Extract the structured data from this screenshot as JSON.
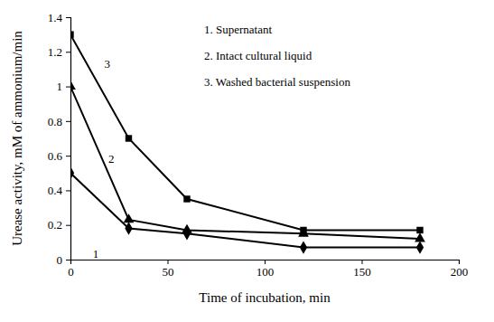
{
  "chart_data": {
    "type": "line",
    "x_label": "Time of incubation, min",
    "y_label": "Urease activity, mM of ammonium/min",
    "x": [
      0,
      30,
      60,
      120,
      180
    ],
    "series": [
      {
        "name": "1. Supernatant",
        "color": "#000000",
        "marker": "diamond",
        "line_style": "solid",
        "values": [
          0.5,
          0.18,
          0.15,
          0.07,
          0.07
        ]
      },
      {
        "name": "2. Intact cultural liquid",
        "color": "#000000",
        "marker": "triangle",
        "line_style": "solid",
        "values": [
          1.0,
          0.23,
          0.17,
          0.15,
          0.12
        ]
      },
      {
        "name": "3. Washed bacterial suspension",
        "color": "#000000",
        "marker": "square",
        "line_style": "solid",
        "values": [
          1.3,
          0.7,
          0.35,
          0.17,
          0.17
        ]
      }
    ],
    "xlim": [
      0,
      200
    ],
    "xticks": [
      0,
      50,
      100,
      150,
      200
    ],
    "ylim": [
      0,
      1.4
    ],
    "yticks": [
      0,
      0.2,
      0.4,
      0.6,
      0.8,
      1,
      1.2,
      1.4
    ],
    "grid": false,
    "legend": "top-right",
    "annotations": [
      {
        "text": "3",
        "x": 19,
        "y": 1.11
      },
      {
        "text": "2",
        "x": 21,
        "y": 0.56
      },
      {
        "text": "1",
        "x": 13,
        "y": 0.01
      }
    ]
  }
}
